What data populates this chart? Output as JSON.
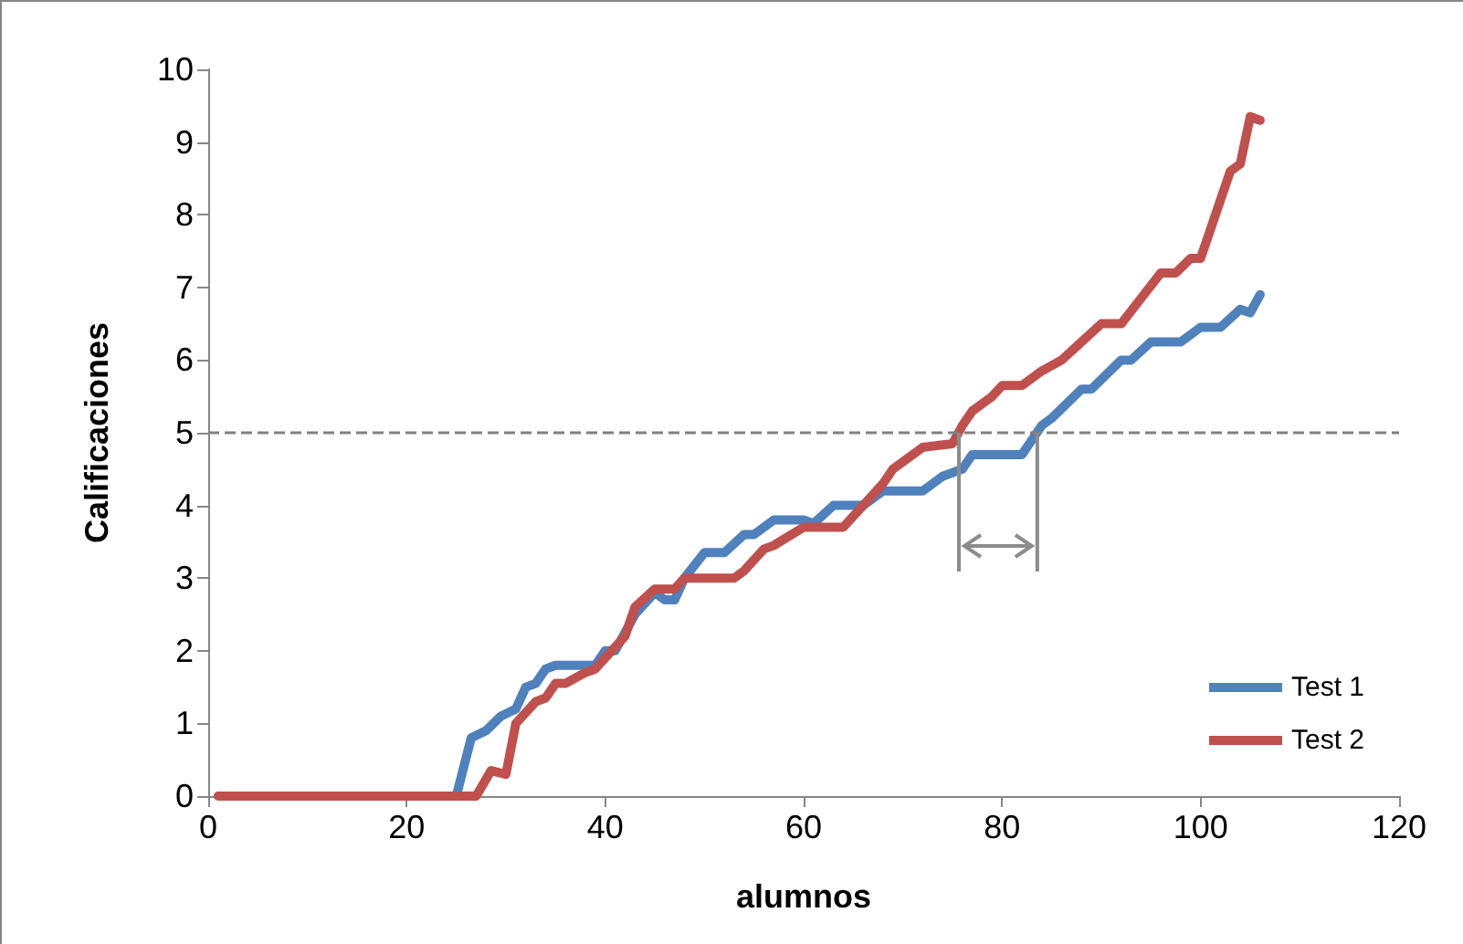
{
  "chart_data": {
    "type": "line",
    "xlabel": "alumnos",
    "ylabel": "Calificaciones",
    "xlim": [
      0,
      120
    ],
    "xticks": [
      0,
      20,
      40,
      60,
      80,
      100,
      120
    ],
    "ylim": [
      0,
      10
    ],
    "yticks": [
      0,
      1,
      2,
      3,
      4,
      5,
      6,
      7,
      8,
      9,
      10
    ],
    "grid": false,
    "legend": "bottom right",
    "marker": "none",
    "line_style": "solid",
    "ref_lines": [
      {
        "axis": "y",
        "value": 5,
        "color": "#808080",
        "line_style": "dashed"
      }
    ],
    "series": [
      {
        "name": "Test 1",
        "color": "#4f81bd",
        "x": [
          25,
          26.5,
          28,
          29.5,
          31,
          32,
          33,
          34,
          35,
          38,
          39,
          40,
          41,
          43,
          45,
          46,
          47,
          48,
          50,
          52,
          54,
          55,
          57,
          60,
          61,
          63,
          66,
          68,
          72,
          74,
          76,
          77,
          82,
          84,
          85,
          88,
          89,
          92,
          93,
          95,
          98,
          100,
          102,
          104,
          105,
          106
        ],
        "values": [
          0,
          0.8,
          0.9,
          1.1,
          1.2,
          1.5,
          1.55,
          1.75,
          1.8,
          1.8,
          1.8,
          2.0,
          2.0,
          2.5,
          2.8,
          2.7,
          2.7,
          3.0,
          3.35,
          3.35,
          3.6,
          3.6,
          3.8,
          3.8,
          3.75,
          4.0,
          4.0,
          4.2,
          4.2,
          4.4,
          4.5,
          4.7,
          4.7,
          5.1,
          5.2,
          5.6,
          5.6,
          6.0,
          6.0,
          6.25,
          6.25,
          6.45,
          6.45,
          6.7,
          6.65,
          6.9
        ]
      },
      {
        "name": "Test 2",
        "color": "#c0504d",
        "x": [
          1,
          10,
          20,
          27,
          28.5,
          30,
          31,
          33,
          34,
          35,
          36,
          38,
          39,
          42,
          43,
          45,
          47,
          48,
          53,
          54,
          56,
          57,
          60,
          64,
          66,
          68,
          69,
          72,
          75,
          76,
          77,
          79,
          80,
          82,
          84,
          86,
          88,
          90,
          92,
          94,
          96,
          97.5,
          99,
          100,
          101.5,
          103,
          104,
          105,
          106
        ],
        "values": [
          0,
          0,
          0,
          0,
          0.35,
          0.3,
          1.0,
          1.3,
          1.35,
          1.55,
          1.55,
          1.7,
          1.75,
          2.2,
          2.6,
          2.85,
          2.85,
          3.0,
          3.0,
          3.1,
          3.4,
          3.45,
          3.7,
          3.7,
          4.0,
          4.3,
          4.5,
          4.8,
          4.85,
          5.1,
          5.3,
          5.5,
          5.65,
          5.65,
          5.85,
          6.0,
          6.25,
          6.5,
          6.5,
          6.85,
          7.2,
          7.2,
          7.4,
          7.4,
          8.0,
          8.6,
          8.7,
          9.35,
          9.3
        ]
      }
    ]
  }
}
